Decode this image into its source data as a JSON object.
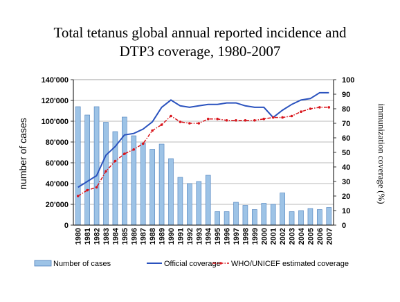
{
  "chart_data": {
    "type": "bar",
    "title_line1": "Total tetanus global annual reported incidence and",
    "title_line2": "DTP3 coverage, 1980-2007",
    "ylabel_left": "number of cases",
    "ylabel_right": "immunization coverage (%)",
    "categories": [
      "1980",
      "1981",
      "1982",
      "1983",
      "1984",
      "1985",
      "1986",
      "1987",
      "1988",
      "1989",
      "1990",
      "1991",
      "1992",
      "1993",
      "1994",
      "1995",
      "1996",
      "1997",
      "1998",
      "1999",
      "2000",
      "2001",
      "2002",
      "2003",
      "2004",
      "2005",
      "2006",
      "2007"
    ],
    "ylim_left": [
      0,
      140000
    ],
    "yticks_left": [
      "0",
      "20'000",
      "40'000",
      "60'000",
      "80'000",
      "100'000",
      "120'000",
      "140'000"
    ],
    "ylim_right": [
      0,
      100
    ],
    "yticks_right": [
      "0",
      "10",
      "20",
      "30",
      "40",
      "50",
      "60",
      "70",
      "80",
      "90",
      "100"
    ],
    "grid": true,
    "legend_position": "bottom",
    "colors": {
      "bar_fill": "#9dc3e6",
      "bar_stroke": "#4a7ebb",
      "official_line": "#2a52be",
      "who_line": "#d9151c"
    },
    "series": [
      {
        "name": "Number of cases",
        "type": "bar",
        "axis": "left",
        "values": [
          114000,
          106000,
          114000,
          99000,
          90000,
          104000,
          86000,
          79000,
          73000,
          78000,
          64000,
          46000,
          40000,
          42000,
          48000,
          13000,
          13000,
          22000,
          19000,
          15000,
          21000,
          20000,
          31000,
          13000,
          14000,
          16000,
          15000,
          17000
        ]
      },
      {
        "name": "Official coverage",
        "type": "line",
        "axis": "right",
        "values": [
          26,
          30,
          34,
          48,
          54,
          62,
          63,
          66,
          71,
          81,
          86,
          82,
          81,
          82,
          83,
          83,
          84,
          84,
          82,
          81,
          81,
          74,
          79,
          83,
          86,
          87,
          91,
          91
        ]
      },
      {
        "name": "WHO/UNICEF estimated coverage",
        "type": "line",
        "axis": "right",
        "values": [
          20,
          24,
          26,
          37,
          44,
          49,
          52,
          56,
          65,
          69,
          75,
          71,
          70,
          70,
          73,
          73,
          72,
          72,
          72,
          72,
          73,
          74,
          74,
          75,
          78,
          80,
          81,
          81
        ]
      }
    ]
  }
}
